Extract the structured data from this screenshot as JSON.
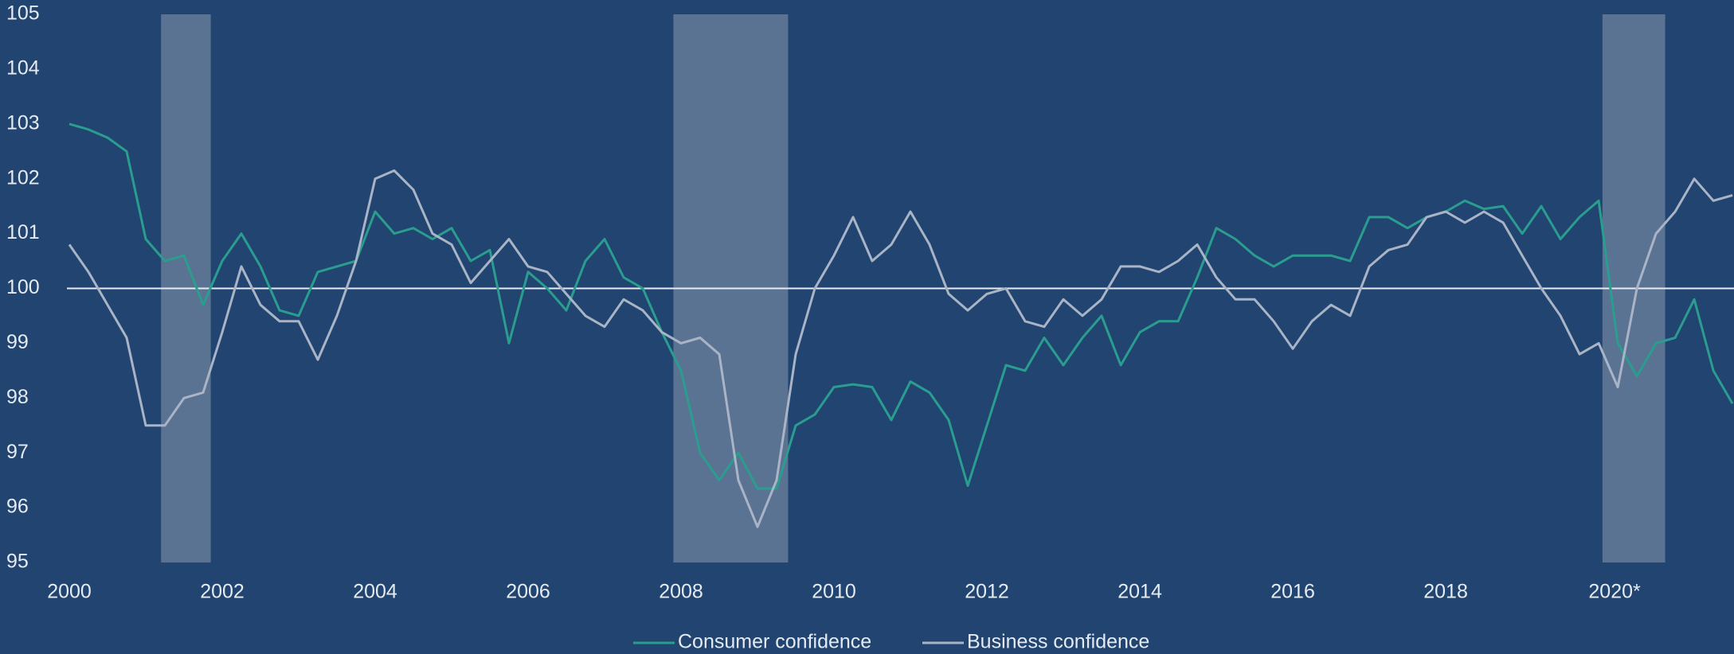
{
  "chart_data": {
    "type": "line",
    "x": [
      2000,
      2000.25,
      2000.5,
      2000.75,
      2001,
      2001.25,
      2001.5,
      2001.75,
      2002,
      2002.25,
      2002.5,
      2002.75,
      2003,
      2003.25,
      2003.5,
      2003.75,
      2004,
      2004.25,
      2004.5,
      2004.75,
      2005,
      2005.25,
      2005.5,
      2005.75,
      2006,
      2006.25,
      2006.5,
      2006.75,
      2007,
      2007.25,
      2007.5,
      2007.75,
      2008,
      2008.25,
      2008.5,
      2008.75,
      2009,
      2009.25,
      2009.5,
      2009.75,
      2010,
      2010.25,
      2010.5,
      2010.75,
      2011,
      2011.25,
      2011.5,
      2011.75,
      2012,
      2012.25,
      2012.5,
      2012.75,
      2013,
      2013.25,
      2013.5,
      2013.75,
      2014,
      2014.25,
      2014.5,
      2014.75,
      2015,
      2015.25,
      2015.5,
      2015.75,
      2016,
      2016.25,
      2016.5,
      2016.75,
      2017,
      2017.25,
      2017.5,
      2017.75,
      2018,
      2018.25,
      2018.5,
      2018.75,
      2019,
      2019.25,
      2019.5,
      2019.75,
      2020,
      2020.25,
      2020.5,
      2020.75,
      2021,
      2021.25,
      2021.5,
      2021.75
    ],
    "series": [
      {
        "name": "Consumer confidence",
        "color": "#2a9d8f",
        "values": [
          103.0,
          102.9,
          102.75,
          102.5,
          100.9,
          100.5,
          100.6,
          99.7,
          100.5,
          101.0,
          100.4,
          99.6,
          99.5,
          100.3,
          100.4,
          100.5,
          101.4,
          101.0,
          101.1,
          100.9,
          101.1,
          100.5,
          100.7,
          99.0,
          100.3,
          100.0,
          99.6,
          100.5,
          100.9,
          100.2,
          100.0,
          99.2,
          98.5,
          97.0,
          96.5,
          97.0,
          96.35,
          96.35,
          97.5,
          97.7,
          98.2,
          98.25,
          98.2,
          97.6,
          98.3,
          98.1,
          97.6,
          96.4,
          97.5,
          98.6,
          98.5,
          99.1,
          98.6,
          99.1,
          99.5,
          98.6,
          99.2,
          99.4,
          99.4,
          100.2,
          101.1,
          100.9,
          100.6,
          100.4,
          100.6,
          100.6,
          100.6,
          100.5,
          101.3,
          101.3,
          101.1,
          101.3,
          101.4,
          101.6,
          101.45,
          101.5,
          101.0,
          101.5,
          100.9,
          101.3,
          101.6,
          99.0,
          98.4,
          99.0,
          99.1,
          99.8,
          98.5,
          97.9
        ]
      },
      {
        "name": "Business confidence",
        "color": "#a9b4c6",
        "values": [
          100.8,
          100.3,
          99.7,
          99.1,
          97.5,
          97.5,
          98.0,
          98.1,
          99.2,
          100.4,
          99.7,
          99.4,
          99.4,
          98.7,
          99.5,
          100.5,
          102.0,
          102.15,
          101.8,
          101.0,
          100.8,
          100.1,
          100.5,
          100.9,
          100.4,
          100.3,
          99.9,
          99.5,
          99.3,
          99.8,
          99.6,
          99.2,
          99.0,
          99.1,
          98.8,
          96.5,
          95.65,
          96.5,
          98.8,
          100.0,
          100.6,
          101.3,
          100.5,
          100.8,
          101.4,
          100.8,
          99.9,
          99.6,
          99.9,
          100.0,
          99.4,
          99.3,
          99.8,
          99.5,
          99.8,
          100.4,
          100.4,
          100.3,
          100.5,
          100.8,
          100.2,
          99.8,
          99.8,
          99.4,
          98.9,
          99.4,
          99.7,
          99.5,
          100.4,
          100.7,
          100.8,
          101.3,
          101.4,
          101.2,
          101.4,
          101.2,
          100.6,
          100.0,
          99.5,
          98.8,
          99.0,
          98.2,
          100.0,
          101.0,
          101.4,
          102.0,
          101.6,
          101.7
        ]
      }
    ],
    "shaded_periods": [
      [
        2001.2,
        2001.85
      ],
      [
        2007.9,
        2009.4
      ],
      [
        2020.05,
        2020.87
      ]
    ],
    "shade_color": "#5a7393",
    "reference_line": 100,
    "xlim": [
      2000,
      2021.77
    ],
    "xticks": [
      2000,
      2002,
      2004,
      2006,
      2008,
      2010,
      2012,
      2014,
      2016,
      2018,
      {
        "value": 2020,
        "label": "2020*"
      }
    ],
    "ylim": [
      95,
      105
    ],
    "yticks": [
      95,
      96,
      97,
      98,
      99,
      100,
      101,
      102,
      103,
      104,
      105
    ],
    "legend": "bottom"
  }
}
